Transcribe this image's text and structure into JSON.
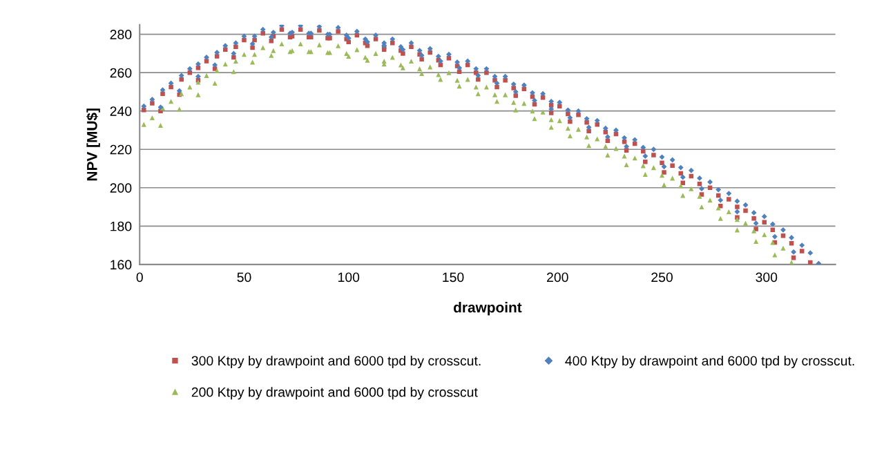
{
  "chart_data": {
    "type": "scatter",
    "xlabel": "drawpoint",
    "ylabel": "NPV [MU$]",
    "xlim": [
      0,
      333
    ],
    "ylim": [
      160,
      285
    ],
    "xticks": [
      0,
      50,
      100,
      150,
      200,
      250,
      300
    ],
    "yticks": [
      160,
      180,
      200,
      220,
      240,
      260,
      280
    ],
    "grid": "y",
    "legend": "bottom",
    "series": [
      {
        "name": "300 Ktpy by drawpoint and 6000 tpd by crosscut.",
        "color": "#c0504d",
        "marker": "square",
        "x": [
          2,
          6,
          10,
          11,
          15,
          19,
          20,
          24,
          28,
          28,
          32,
          36,
          37,
          41,
          45,
          46,
          50,
          54,
          55,
          59,
          63,
          64,
          68,
          72,
          73,
          77,
          81,
          82,
          86,
          90,
          91,
          95,
          99,
          100,
          104,
          108,
          109,
          113,
          117,
          117,
          121,
          125,
          126,
          130,
          134,
          135,
          139,
          143,
          144,
          148,
          152,
          153,
          157,
          161,
          162,
          166,
          170,
          171,
          175,
          179,
          180,
          184,
          188,
          189,
          193,
          197,
          197,
          201,
          205,
          206,
          210,
          214,
          215,
          219,
          223,
          224,
          228,
          232,
          233,
          237,
          241,
          242,
          246,
          250,
          251,
          255,
          259,
          260,
          264,
          268,
          269,
          273,
          277,
          278,
          282,
          286,
          286,
          290,
          294,
          295,
          299,
          303,
          304,
          308,
          312,
          313,
          317,
          321
        ],
        "values": [
          240.5,
          244,
          240,
          249,
          252.5,
          248.5,
          256.5,
          260,
          256,
          262.5,
          266,
          262,
          268.5,
          272,
          268,
          273.5,
          277,
          273,
          277,
          280.5,
          276.5,
          279,
          282.5,
          278.5,
          279,
          282.5,
          278.5,
          278.5,
          282,
          278,
          278,
          281.5,
          277.5,
          276,
          279.5,
          275.5,
          274,
          277.5,
          273.5,
          272,
          275.5,
          271.5,
          270,
          273.5,
          269.5,
          267,
          270.5,
          266.5,
          264,
          267.5,
          263.5,
          260.5,
          264,
          260,
          256.5,
          260,
          256,
          252.5,
          256,
          252,
          248,
          251.5,
          247.5,
          243.5,
          247,
          243,
          239,
          242.5,
          238.5,
          234.5,
          238,
          234,
          229.5,
          233,
          229,
          224.5,
          228,
          224,
          219.5,
          223,
          219,
          213.5,
          217,
          213,
          208,
          211.5,
          207.5,
          202.5,
          206,
          202,
          196.5,
          200,
          196,
          190.5,
          194,
          190,
          184.5,
          188,
          184,
          178.5,
          182,
          178,
          171.5,
          175,
          171,
          163.5,
          167,
          161
        ]
      },
      {
        "name": "200 Ktpy by drawpoint and 6000 tpd by crosscut",
        "color": "#9bbb59",
        "marker": "triangle",
        "x": [
          2,
          6,
          10,
          11,
          15,
          19,
          20,
          24,
          28,
          28,
          32,
          36,
          37,
          41,
          45,
          46,
          50,
          54,
          55,
          59,
          63,
          64,
          68,
          72,
          73,
          77,
          81,
          82,
          86,
          90,
          91,
          95,
          99,
          100,
          104,
          108,
          109,
          113,
          117,
          117,
          121,
          125,
          126,
          130,
          134,
          135,
          139,
          143,
          144,
          148,
          152,
          153,
          157,
          161,
          162,
          166,
          170,
          171,
          175,
          179,
          180,
          184,
          188,
          189,
          193,
          197,
          197,
          201,
          205,
          206,
          210,
          214,
          215,
          219,
          223,
          224,
          228,
          232,
          233,
          237,
          241,
          242,
          246,
          250,
          251,
          255,
          259,
          260,
          264,
          268,
          269,
          273,
          277,
          278,
          282,
          286,
          286,
          290,
          294,
          295,
          299,
          303,
          304,
          308,
          312
        ],
        "values": [
          233,
          236.5,
          232.5,
          241.5,
          245,
          241,
          249,
          252.5,
          248.5,
          255,
          258.5,
          254.5,
          261,
          264.5,
          260.5,
          266,
          269.5,
          265.5,
          269.5,
          273,
          269,
          271.5,
          275,
          271,
          271.5,
          275,
          271,
          271,
          274.5,
          270.5,
          270.5,
          274,
          270,
          268.5,
          272,
          268,
          266.5,
          270,
          266,
          264.5,
          268,
          264,
          262.5,
          266,
          262,
          259.5,
          263,
          259,
          256.5,
          260,
          256,
          253,
          256.5,
          252.5,
          249,
          252.5,
          248.5,
          245,
          248.5,
          244.5,
          240.5,
          244,
          240,
          236,
          239.5,
          235.5,
          231.5,
          235,
          231,
          227,
          230.5,
          226.5,
          222,
          225.5,
          221.5,
          217,
          220.5,
          216.5,
          212,
          215.5,
          211.5,
          207,
          210.5,
          206.5,
          201.5,
          205,
          201,
          196,
          199.5,
          195.5,
          190,
          193.5,
          189.5,
          184,
          187.5,
          183.5,
          178,
          181.5,
          177.5,
          172,
          175.5,
          171.5,
          165,
          168.5,
          161
        ]
      },
      {
        "name": "400 Ktpy by drawpoint and 6000 tpd by crosscut.",
        "color": "#4f81bd",
        "marker": "diamond",
        "x": [
          2,
          6,
          10,
          11,
          15,
          19,
          20,
          24,
          28,
          28,
          32,
          36,
          37,
          41,
          45,
          46,
          50,
          54,
          55,
          59,
          63,
          64,
          68,
          72,
          73,
          77,
          81,
          82,
          86,
          90,
          91,
          95,
          99,
          100,
          104,
          108,
          109,
          113,
          117,
          117,
          121,
          125,
          126,
          130,
          134,
          135,
          139,
          143,
          144,
          148,
          152,
          153,
          157,
          161,
          162,
          166,
          170,
          171,
          175,
          179,
          180,
          184,
          188,
          189,
          193,
          197,
          197,
          201,
          205,
          206,
          210,
          214,
          215,
          219,
          223,
          224,
          228,
          232,
          233,
          237,
          241,
          242,
          246,
          250,
          251,
          255,
          259,
          260,
          264,
          268,
          269,
          273,
          277,
          278,
          282,
          286,
          286,
          290,
          294,
          295,
          299,
          303,
          304,
          308,
          312,
          313,
          317,
          321,
          325
        ],
        "values": [
          242.5,
          246,
          242,
          251,
          254.5,
          250.5,
          258.5,
          262,
          258,
          264.5,
          268,
          264,
          270.5,
          274,
          270,
          275.5,
          279,
          275,
          279,
          282.5,
          278.5,
          281,
          284.5,
          280.5,
          281,
          284.5,
          280.5,
          280.5,
          284,
          280,
          280,
          283.5,
          279.5,
          278,
          281.5,
          277.5,
          276,
          279.5,
          275.5,
          274,
          277.5,
          273.5,
          272,
          275.5,
          271.5,
          269,
          272.5,
          268.5,
          266,
          269.5,
          265.5,
          262.5,
          266,
          262,
          258.5,
          262,
          258,
          254.5,
          258,
          254,
          250,
          253.5,
          249.5,
          245.5,
          249,
          245,
          241,
          244.5,
          240.5,
          236.5,
          240,
          236,
          231.5,
          235,
          231,
          226.5,
          230,
          226,
          221.5,
          225,
          221,
          216.5,
          220,
          216,
          211,
          214.5,
          210.5,
          205.5,
          209,
          205,
          199.5,
          203,
          199,
          193.5,
          197,
          193,
          187.5,
          191,
          187,
          181.5,
          185,
          181,
          174.5,
          178,
          174,
          166.5,
          170,
          166,
          160.5
        ]
      }
    ]
  }
}
